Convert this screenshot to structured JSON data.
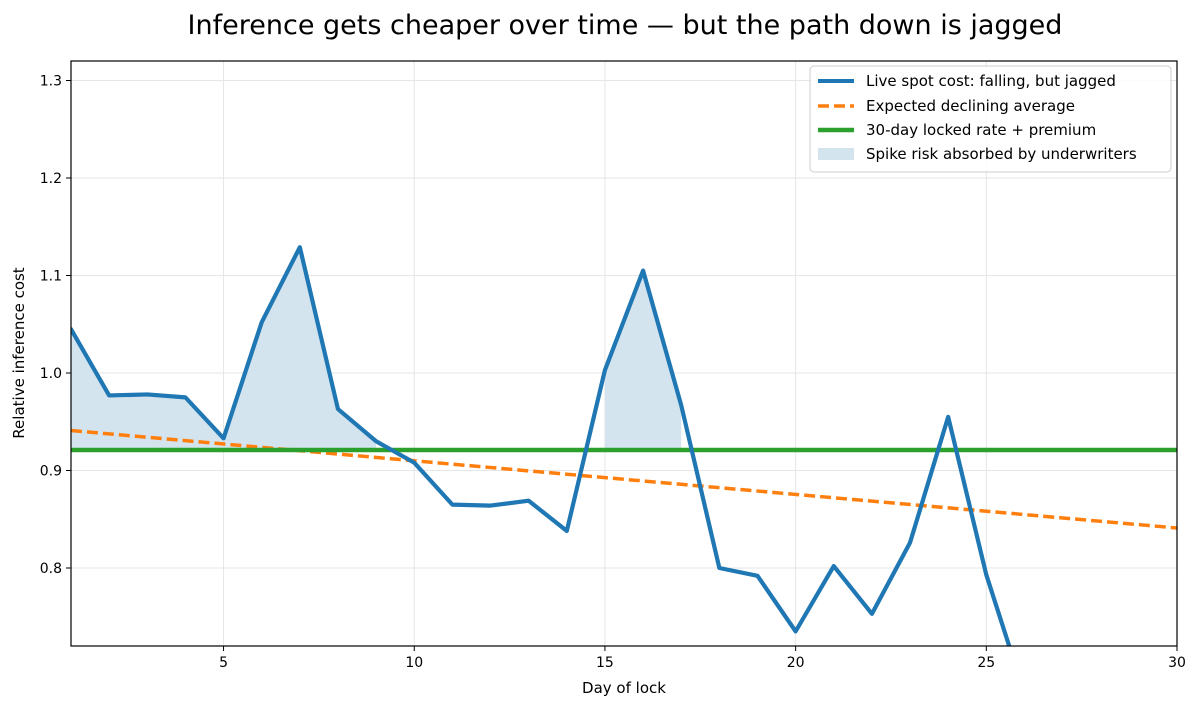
{
  "chart_data": {
    "type": "line",
    "title": "Inference gets cheaper over time — but the path down is jagged",
    "xlabel": "Day of lock",
    "ylabel": "Relative inference cost",
    "xlim": [
      1,
      30
    ],
    "ylim": [
      0.72,
      1.32
    ],
    "x_ticks": [
      5,
      10,
      15,
      20,
      25,
      30
    ],
    "y_ticks": [
      0.8,
      0.9,
      1.0,
      1.1,
      1.2,
      1.3
    ],
    "x_tick_labels": [
      "5",
      "10",
      "15",
      "20",
      "25",
      "30"
    ],
    "y_tick_labels": [
      "0.8",
      "0.9",
      "1.0",
      "1.1",
      "1.2",
      "1.3"
    ],
    "grid": true,
    "legend_position": "upper right",
    "series": [
      {
        "name": "Live spot cost: falling, but jagged",
        "style": "solid",
        "color": "#1f77b4",
        "x": [
          1,
          2,
          3,
          4,
          5,
          6,
          7,
          8,
          9,
          10,
          11,
          12,
          13,
          14,
          15,
          16,
          17,
          18,
          19,
          20,
          21,
          22,
          23,
          24,
          25,
          25.6
        ],
        "y": [
          1.045,
          0.977,
          0.978,
          0.975,
          0.933,
          1.052,
          1.129,
          0.963,
          0.93,
          0.908,
          0.865,
          0.864,
          0.869,
          0.838,
          1.003,
          1.105,
          0.967,
          0.8,
          0.792,
          0.735,
          0.802,
          0.753,
          0.826,
          0.955,
          0.793,
          0.72
        ]
      },
      {
        "name": "Expected declining average",
        "style": "dashed",
        "color": "#ff7f0e",
        "x": [
          1,
          30
        ],
        "y": [
          0.941,
          0.841
        ]
      },
      {
        "name": "30-day locked rate + premium",
        "style": "solid",
        "color": "#2ca02c",
        "x": [
          1,
          30
        ],
        "y": [
          0.921,
          0.921
        ]
      },
      {
        "name": "Spike risk absorbed by underwriters",
        "style": "fill",
        "color": "#d4e4ef",
        "base": 0.921
      }
    ]
  }
}
